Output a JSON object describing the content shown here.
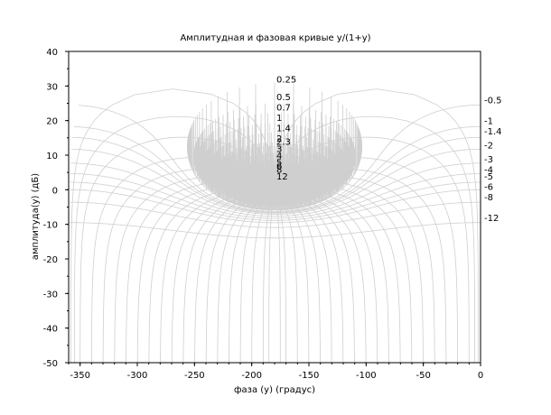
{
  "chart_data": {
    "type": "line",
    "title": "Амплитудная и фазовая кривые y/(1+y)",
    "xlabel": "фаза (y) (градус)",
    "ylabel": "амплитуда(y) (дБ)",
    "xlim": [
      -360,
      0
    ],
    "ylim": [
      -50,
      40
    ],
    "grid": false,
    "legend": "none",
    "x_ticks": [
      "-350",
      "-300",
      "-250",
      "-200",
      "-150",
      "-100",
      "-50",
      "0"
    ],
    "y_ticks": [
      "40",
      "30",
      "20",
      "10",
      "0",
      "-10",
      "-20",
      "-30",
      "-40",
      "-50"
    ],
    "gain_labels_db": [
      {
        "label": "0.25",
        "value": 0.25
      },
      {
        "label": "0.5",
        "value": 0.5
      },
      {
        "label": "0.7",
        "value": 0.7
      },
      {
        "label": "1",
        "value": 1
      },
      {
        "label": "1.4",
        "value": 1.4
      },
      {
        "label": "2",
        "value": 2
      },
      {
        "label": "2.3",
        "value": 2.3
      },
      {
        "label": "3",
        "value": 3
      },
      {
        "label": "4",
        "value": 4
      },
      {
        "label": "5",
        "value": 5
      },
      {
        "label": "6",
        "value": 6
      },
      {
        "label": "8",
        "value": 8
      },
      {
        "label": "12",
        "value": 12
      }
    ],
    "neg_gain_labels_db": [
      {
        "label": "-0.5",
        "value": -0.5
      },
      {
        "label": "-1",
        "value": -1
      },
      {
        "label": "-1.4",
        "value": -1.4
      },
      {
        "label": "-2",
        "value": -2
      },
      {
        "label": "-3",
        "value": -3
      },
      {
        "label": "-4",
        "value": -4
      },
      {
        "label": "-5",
        "value": -5
      },
      {
        "label": "-6",
        "value": -6
      },
      {
        "label": "-8",
        "value": -8
      },
      {
        "label": "-12",
        "value": -12
      }
    ],
    "closed_loop_phase_contours_deg": [
      -10,
      -20,
      -30,
      -40,
      -50,
      -60,
      -70,
      -80,
      -90,
      -100,
      -110,
      -120,
      -130,
      -140,
      -150,
      -160,
      -170,
      -175,
      -5,
      -2
    ],
    "colors": {
      "grid_curves": "#cfcfcf",
      "axes": "#000000"
    }
  }
}
